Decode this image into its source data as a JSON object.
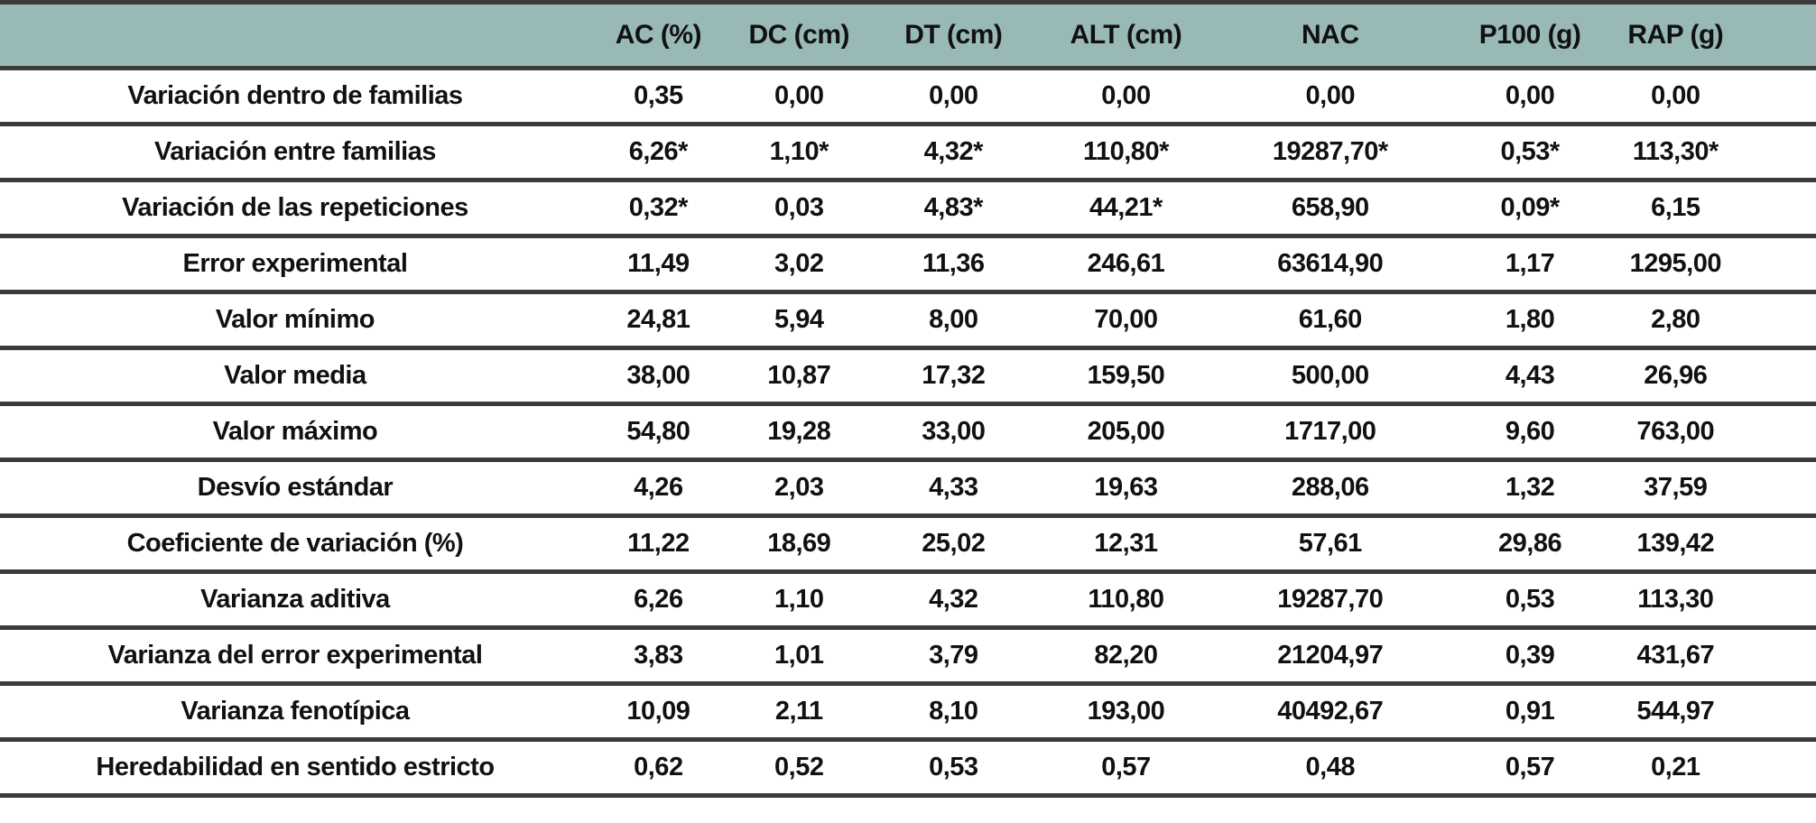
{
  "colors": {
    "header_bg": "#99b9b6",
    "border": "#3b3b3b",
    "text": "#111111"
  },
  "chart_data": {
    "type": "table",
    "title": "",
    "columns": [
      "",
      "AC (%)",
      "DC (cm)",
      "DT (cm)",
      "ALT (cm)",
      "NAC",
      "P100 (g)",
      "RAP (g)"
    ],
    "rows": [
      {
        "label": "Variación dentro de familias",
        "values": [
          "0,35",
          "0,00",
          "0,00",
          "0,00",
          "0,00",
          "0,00",
          "0,00"
        ]
      },
      {
        "label": "Variación entre familias",
        "values": [
          "6,26*",
          "1,10*",
          "4,32*",
          "110,80*",
          "19287,70*",
          "0,53*",
          "113,30*"
        ]
      },
      {
        "label": "Variación de las repeticiones",
        "values": [
          "0,32*",
          "0,03",
          "4,83*",
          "44,21*",
          "658,90",
          "0,09*",
          "6,15"
        ]
      },
      {
        "label": "Error experimental",
        "values": [
          "11,49",
          "3,02",
          "11,36",
          "246,61",
          "63614,90",
          "1,17",
          "1295,00"
        ]
      },
      {
        "label": "Valor mínimo",
        "values": [
          "24,81",
          "5,94",
          "8,00",
          "70,00",
          "61,60",
          "1,80",
          "2,80"
        ]
      },
      {
        "label": "Valor media",
        "values": [
          "38,00",
          "10,87",
          "17,32",
          "159,50",
          "500,00",
          "4,43",
          "26,96"
        ]
      },
      {
        "label": "Valor máximo",
        "values": [
          "54,80",
          "19,28",
          "33,00",
          "205,00",
          "1717,00",
          "9,60",
          "763,00"
        ]
      },
      {
        "label": "Desvío estándar",
        "values": [
          "4,26",
          "2,03",
          "4,33",
          "19,63",
          "288,06",
          "1,32",
          "37,59"
        ]
      },
      {
        "label": "Coeficiente de variación (%)",
        "values": [
          "11,22",
          "18,69",
          "25,02",
          "12,31",
          "57,61",
          "29,86",
          "139,42"
        ]
      },
      {
        "label": "Varianza aditiva",
        "values": [
          "6,26",
          "1,10",
          "4,32",
          "110,80",
          "19287,70",
          "0,53",
          "113,30"
        ]
      },
      {
        "label": "Varianza del error experimental",
        "values": [
          "3,83",
          "1,01",
          "3,79",
          "82,20",
          "21204,97",
          "0,39",
          "431,67"
        ]
      },
      {
        "label": "Varianza fenotípica",
        "values": [
          "10,09",
          "2,11",
          "8,10",
          "193,00",
          "40492,67",
          "0,91",
          "544,97"
        ]
      },
      {
        "label": "Heredabilidad en sentido estricto",
        "values": [
          "0,62",
          "0,52",
          "0,53",
          "0,57",
          "0,48",
          "0,57",
          "0,21"
        ]
      }
    ]
  }
}
